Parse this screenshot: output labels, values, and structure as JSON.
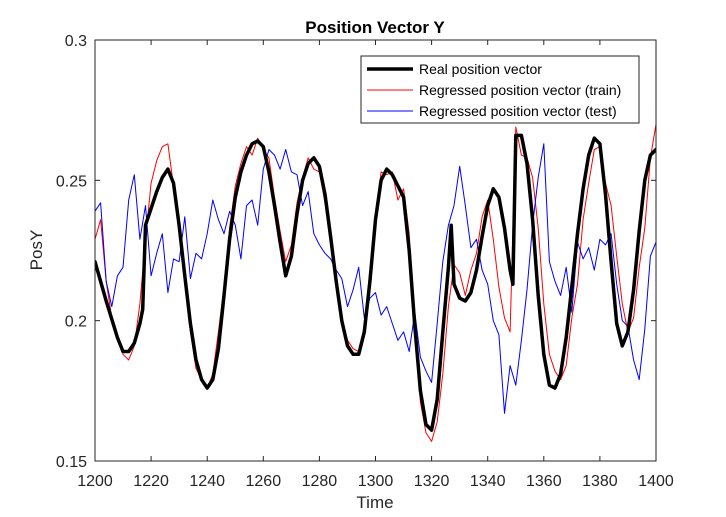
{
  "chart_data": {
    "type": "line",
    "title": "Position Vector Y",
    "xlabel": "Time",
    "ylabel": "PosY",
    "xlim": [
      1200,
      1400
    ],
    "ylim": [
      0.15,
      0.3
    ],
    "xticks": [
      1200,
      1220,
      1240,
      1260,
      1280,
      1300,
      1320,
      1340,
      1360,
      1380,
      1400
    ],
    "xtick_labels": [
      "1200",
      "1220",
      "1240",
      "1260",
      "1280",
      "1300",
      "1320",
      "1340",
      "1360",
      "1380",
      "1400"
    ],
    "yticks": [
      0.15,
      0.2,
      0.25,
      0.3
    ],
    "ytick_labels": [
      "0.15",
      "0.2",
      "0.25",
      "0.3"
    ],
    "grid": false,
    "legend_position": "top-right",
    "series": [
      {
        "name": "Real position vector",
        "color": "#000000",
        "width": "thick",
        "x": [
          1200,
          1204,
          1208,
          1210,
          1212,
          1214,
          1216,
          1217,
          1218,
          1220,
          1222,
          1224,
          1226,
          1228,
          1230,
          1232,
          1234,
          1236,
          1238,
          1240,
          1242,
          1244,
          1246,
          1248,
          1250,
          1252,
          1254,
          1256,
          1258,
          1260,
          1262,
          1264,
          1266,
          1268,
          1270,
          1272,
          1274,
          1276,
          1278,
          1280,
          1282,
          1284,
          1286,
          1288,
          1290,
          1292,
          1294,
          1296,
          1298,
          1300,
          1302,
          1304,
          1306,
          1308,
          1310,
          1312,
          1314,
          1316,
          1318,
          1320,
          1322,
          1324,
          1326,
          1327,
          1328,
          1330,
          1332,
          1334,
          1336,
          1338,
          1340,
          1342,
          1344,
          1346,
          1348,
          1349,
          1350,
          1352,
          1354,
          1356,
          1358,
          1360,
          1362,
          1364,
          1366,
          1368,
          1370,
          1372,
          1374,
          1376,
          1378,
          1380,
          1382,
          1384,
          1386,
          1388,
          1390,
          1392,
          1394,
          1396,
          1398,
          1400
        ],
        "y": [
          0.221,
          0.207,
          0.194,
          0.189,
          0.189,
          0.192,
          0.199,
          0.204,
          0.234,
          0.24,
          0.246,
          0.251,
          0.254,
          0.249,
          0.234,
          0.216,
          0.199,
          0.186,
          0.179,
          0.176,
          0.179,
          0.19,
          0.209,
          0.229,
          0.244,
          0.253,
          0.259,
          0.263,
          0.264,
          0.262,
          0.253,
          0.241,
          0.228,
          0.216,
          0.223,
          0.238,
          0.25,
          0.256,
          0.258,
          0.255,
          0.245,
          0.23,
          0.214,
          0.2,
          0.191,
          0.188,
          0.188,
          0.196,
          0.214,
          0.236,
          0.25,
          0.254,
          0.252,
          0.248,
          0.244,
          0.225,
          0.198,
          0.175,
          0.163,
          0.161,
          0.172,
          0.196,
          0.219,
          0.234,
          0.213,
          0.208,
          0.207,
          0.21,
          0.218,
          0.23,
          0.241,
          0.247,
          0.244,
          0.233,
          0.218,
          0.213,
          0.266,
          0.266,
          0.256,
          0.236,
          0.209,
          0.188,
          0.177,
          0.176,
          0.181,
          0.194,
          0.212,
          0.231,
          0.247,
          0.259,
          0.265,
          0.263,
          0.245,
          0.221,
          0.199,
          0.191,
          0.196,
          0.211,
          0.232,
          0.25,
          0.259,
          0.261
        ]
      },
      {
        "name": "Regressed position vector (train)",
        "color": "#ff0000",
        "width": "thin",
        "x": [
          1200,
          1202,
          1204,
          1206,
          1208,
          1210,
          1212,
          1214,
          1216,
          1218,
          1220,
          1222,
          1224,
          1226,
          1228,
          1230,
          1232,
          1234,
          1236,
          1238,
          1240,
          1242,
          1244,
          1246,
          1248,
          1250,
          1252,
          1254,
          1256,
          1258,
          1260,
          1262,
          1264,
          1266,
          1268,
          1270,
          1272,
          1274,
          1276,
          1278,
          1280,
          1282,
          1284,
          1286,
          1288,
          1290,
          1292,
          1294,
          1296,
          1298,
          1300,
          1302,
          1304,
          1306,
          1308,
          1310,
          1312,
          1314,
          1316,
          1318,
          1320,
          1322,
          1324,
          1326,
          1328,
          1330,
          1332,
          1334,
          1336,
          1338,
          1340,
          1342,
          1344,
          1346,
          1348,
          1350,
          1352,
          1354,
          1356,
          1358,
          1360,
          1362,
          1364,
          1366,
          1368,
          1370,
          1372,
          1374,
          1376,
          1378,
          1380,
          1382,
          1384,
          1386,
          1388,
          1390,
          1392,
          1394,
          1396,
          1398,
          1400
        ],
        "y": [
          0.229,
          0.236,
          0.214,
          0.201,
          0.195,
          0.188,
          0.186,
          0.191,
          0.206,
          0.229,
          0.249,
          0.257,
          0.262,
          0.263,
          0.248,
          0.236,
          0.214,
          0.196,
          0.183,
          0.179,
          0.176,
          0.181,
          0.196,
          0.212,
          0.233,
          0.248,
          0.256,
          0.262,
          0.259,
          0.265,
          0.261,
          0.258,
          0.244,
          0.232,
          0.221,
          0.227,
          0.242,
          0.251,
          0.258,
          0.254,
          0.253,
          0.242,
          0.227,
          0.214,
          0.201,
          0.193,
          0.19,
          0.189,
          0.198,
          0.218,
          0.236,
          0.253,
          0.252,
          0.253,
          0.243,
          0.247,
          0.231,
          0.198,
          0.171,
          0.16,
          0.157,
          0.164,
          0.181,
          0.205,
          0.22,
          0.217,
          0.209,
          0.218,
          0.224,
          0.237,
          0.243,
          0.229,
          0.212,
          0.201,
          0.196,
          0.269,
          0.259,
          0.258,
          0.251,
          0.233,
          0.206,
          0.188,
          0.182,
          0.179,
          0.184,
          0.201,
          0.213,
          0.236,
          0.249,
          0.261,
          0.262,
          0.249,
          0.241,
          0.223,
          0.206,
          0.196,
          0.201,
          0.219,
          0.233,
          0.258,
          0.27
        ]
      },
      {
        "name": "Regressed position vector (test)",
        "color": "#0000ff",
        "width": "thin",
        "x": [
          1200,
          1202,
          1204,
          1206,
          1208,
          1210,
          1212,
          1214,
          1216,
          1218,
          1220,
          1222,
          1224,
          1226,
          1228,
          1230,
          1232,
          1234,
          1236,
          1238,
          1240,
          1242,
          1244,
          1246,
          1248,
          1250,
          1252,
          1254,
          1256,
          1258,
          1260,
          1262,
          1264,
          1266,
          1268,
          1270,
          1272,
          1274,
          1276,
          1278,
          1280,
          1282,
          1284,
          1286,
          1288,
          1290,
          1292,
          1294,
          1296,
          1298,
          1300,
          1302,
          1304,
          1306,
          1308,
          1310,
          1312,
          1314,
          1316,
          1318,
          1320,
          1322,
          1324,
          1326,
          1328,
          1330,
          1332,
          1334,
          1336,
          1338,
          1340,
          1342,
          1344,
          1346,
          1348,
          1350,
          1352,
          1354,
          1356,
          1358,
          1360,
          1362,
          1364,
          1366,
          1368,
          1370,
          1372,
          1374,
          1376,
          1378,
          1380,
          1382,
          1384,
          1386,
          1388,
          1390,
          1392,
          1394,
          1396,
          1398,
          1400
        ],
        "y": [
          0.239,
          0.242,
          0.214,
          0.205,
          0.216,
          0.219,
          0.243,
          0.252,
          0.229,
          0.241,
          0.216,
          0.224,
          0.231,
          0.21,
          0.222,
          0.221,
          0.237,
          0.215,
          0.224,
          0.222,
          0.231,
          0.243,
          0.236,
          0.231,
          0.239,
          0.234,
          0.222,
          0.241,
          0.243,
          0.234,
          0.254,
          0.261,
          0.259,
          0.254,
          0.261,
          0.253,
          0.252,
          0.241,
          0.246,
          0.231,
          0.227,
          0.224,
          0.222,
          0.218,
          0.215,
          0.205,
          0.211,
          0.219,
          0.201,
          0.208,
          0.21,
          0.202,
          0.205,
          0.199,
          0.193,
          0.196,
          0.189,
          0.203,
          0.187,
          0.182,
          0.178,
          0.199,
          0.221,
          0.234,
          0.241,
          0.255,
          0.241,
          0.226,
          0.229,
          0.218,
          0.213,
          0.2,
          0.195,
          0.167,
          0.184,
          0.177,
          0.193,
          0.211,
          0.234,
          0.251,
          0.263,
          0.221,
          0.214,
          0.209,
          0.219,
          0.203,
          0.228,
          0.222,
          0.226,
          0.218,
          0.229,
          0.227,
          0.231,
          0.213,
          0.2,
          0.198,
          0.186,
          0.179,
          0.197,
          0.223,
          0.228
        ]
      }
    ]
  }
}
